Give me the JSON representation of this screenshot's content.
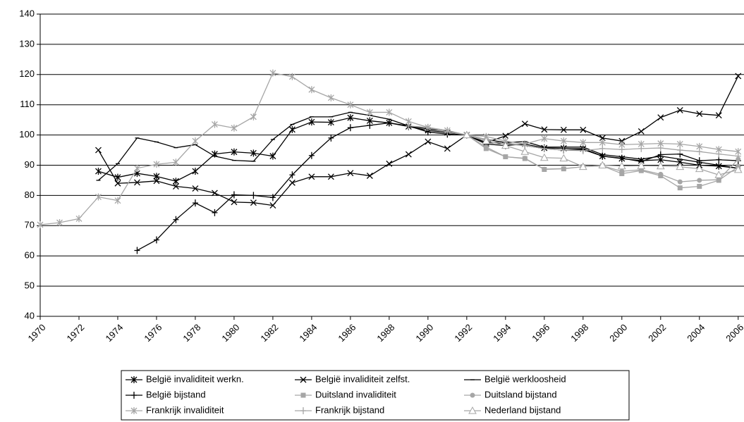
{
  "chart_data": {
    "type": "line",
    "x": [
      1970,
      1971,
      1972,
      1973,
      1974,
      1975,
      1976,
      1977,
      1978,
      1979,
      1980,
      1981,
      1982,
      1983,
      1984,
      1985,
      1986,
      1987,
      1988,
      1989,
      1990,
      1991,
      1992,
      1993,
      1994,
      1995,
      1996,
      1997,
      1998,
      1999,
      2000,
      2001,
      2002,
      2003,
      2004,
      2005,
      2006
    ],
    "xlim": [
      1970,
      2006.3
    ],
    "xticks": [
      1970,
      1972,
      1974,
      1976,
      1978,
      1980,
      1982,
      1984,
      1986,
      1988,
      1990,
      1992,
      1994,
      1996,
      1998,
      2000,
      2002,
      2004,
      2006
    ],
    "ylim": [
      40,
      140
    ],
    "yticks": [
      40,
      50,
      60,
      70,
      80,
      90,
      100,
      110,
      120,
      130,
      140
    ],
    "grid": true,
    "legend": "bottom",
    "series": [
      {
        "name": "België invaliditeit werkn.",
        "color": "#000000",
        "marker": "asterisk",
        "values": [
          null,
          null,
          null,
          88,
          86,
          87.3,
          86.3,
          84.7,
          88,
          93.7,
          94.4,
          94,
          93,
          101.8,
          104.3,
          104.2,
          105.7,
          104.7,
          104,
          102.8,
          101.5,
          100.8,
          100,
          97,
          96.5,
          97,
          95.7,
          95.6,
          95.5,
          93,
          92.2,
          91.5,
          91.8,
          91,
          90,
          89.7,
          89
        ]
      },
      {
        "name": "België invaliditeit zelfst.",
        "color": "#000000",
        "marker": "x",
        "values": [
          null,
          null,
          null,
          95,
          84,
          84.3,
          84.8,
          83,
          82.3,
          80.8,
          77.8,
          77.6,
          76.7,
          84.2,
          86.2,
          86.2,
          87.4,
          86.5,
          90.5,
          93.6,
          97.8,
          95.5,
          100,
          97.5,
          99.7,
          103.7,
          101.8,
          101.7,
          101.7,
          99,
          98,
          101.2,
          105.8,
          108.2,
          107,
          106.5,
          119.5
        ]
      },
      {
        "name": "België werkloosheid",
        "color": "#000000",
        "marker": "dash",
        "values": [
          null,
          null,
          null,
          85,
          90.5,
          99,
          97.7,
          95.8,
          96.8,
          93,
          91.6,
          91.3,
          98.5,
          103.5,
          106,
          106,
          107.5,
          106.5,
          105.2,
          103,
          102,
          101.2,
          100,
          98.5,
          97.5,
          97.8,
          96,
          96,
          96,
          93.5,
          92.8,
          92,
          93,
          92,
          91,
          90,
          89
        ]
      },
      {
        "name": "België bijstand",
        "color": "#000000",
        "marker": "plus",
        "values": [
          null,
          null,
          null,
          null,
          null,
          61.8,
          65.3,
          72,
          77.5,
          74.3,
          80.2,
          80,
          79.3,
          86.8,
          93.2,
          99,
          102.4,
          103.2,
          104,
          103,
          101,
          100.3,
          100,
          97.5,
          97.2,
          96.5,
          95.5,
          95,
          95.2,
          93,
          92.3,
          91.2,
          93.5,
          93.7,
          91.5,
          91.8,
          91.5
        ]
      },
      {
        "name": "Duitsland invaliditeit",
        "color": "#a6a6a6",
        "marker": "square",
        "values": [
          null,
          null,
          null,
          null,
          null,
          null,
          null,
          null,
          null,
          null,
          null,
          null,
          null,
          null,
          null,
          null,
          null,
          null,
          null,
          null,
          null,
          null,
          100,
          95.5,
          92.8,
          92.2,
          88.6,
          88.8,
          89.5,
          89.8,
          87.2,
          88.2,
          86.5,
          82.5,
          83,
          85,
          89.5
        ]
      },
      {
        "name": "Duitsland bijstand",
        "color": "#a6a6a6",
        "marker": "circle",
        "values": [
          null,
          null,
          null,
          null,
          null,
          null,
          null,
          null,
          null,
          null,
          null,
          null,
          null,
          null,
          null,
          null,
          null,
          null,
          null,
          null,
          null,
          null,
          100,
          96,
          92.8,
          92.3,
          88.7,
          88.9,
          89.5,
          89.8,
          88,
          88.5,
          87,
          84.5,
          85,
          85.2,
          92
        ]
      },
      {
        "name": "Frankrijk invaliditeit",
        "color": "#a6a6a6",
        "marker": "asterisk",
        "values": [
          70.3,
          71,
          72.3,
          79.5,
          78.3,
          89,
          90.3,
          91,
          98,
          103.5,
          102.3,
          106,
          120.5,
          119.3,
          115,
          112.3,
          110,
          107.5,
          107.5,
          104.5,
          102.5,
          101.5,
          100,
          99.5,
          98,
          97,
          98.8,
          98,
          97.5,
          97.5,
          96.8,
          97,
          97.2,
          97,
          96.2,
          95.2,
          94.5
        ]
      },
      {
        "name": "Frankrijk bijstand",
        "color": "#a6a6a6",
        "marker": "plus",
        "values": [
          null,
          null,
          null,
          null,
          null,
          null,
          null,
          null,
          null,
          null,
          null,
          null,
          null,
          null,
          null,
          null,
          null,
          null,
          null,
          103,
          102.5,
          101,
          100,
          98.5,
          97,
          96.5,
          95.5,
          95,
          94.8,
          95.5,
          95.2,
          95.5,
          95.7,
          95,
          94.5,
          93.7,
          93
        ]
      },
      {
        "name": "Nederland bijstand",
        "color": "#a6a6a6",
        "marker": "triangle",
        "values": [
          null,
          null,
          null,
          null,
          null,
          null,
          null,
          null,
          null,
          null,
          null,
          null,
          null,
          null,
          null,
          null,
          null,
          null,
          null,
          null,
          null,
          null,
          100,
          98,
          96.5,
          94.5,
          92.5,
          92.3,
          89.5,
          90,
          89.7,
          89.8,
          89.7,
          89.5,
          88.8,
          86.8,
          88.5
        ]
      }
    ]
  }
}
